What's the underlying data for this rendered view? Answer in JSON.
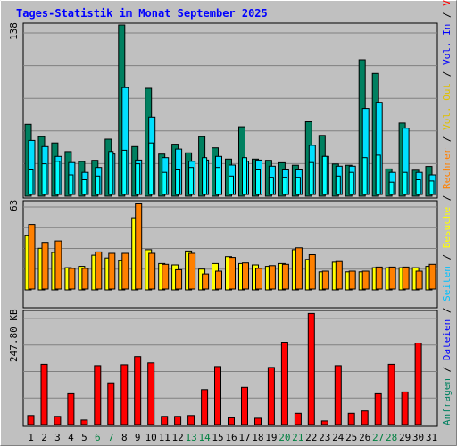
{
  "title": "Tages-Statistik im Monat September 2025",
  "colors": {
    "background": "#c0c0c0",
    "panel": "#c0c0c0",
    "title": "#0000ff",
    "anfragen": "#008060",
    "dateien": "#00e0ff",
    "seiten": "#00ffff",
    "besuche": "#ffff00",
    "rechner": "#ff8000",
    "vol_in": "#0000ff",
    "vol_out": "#ffff00",
    "volumen": "#ff0000",
    "weekend_label": "#008040",
    "label": "#000000"
  },
  "chart_data": [
    {
      "type": "bar",
      "name": "requests",
      "y_max_label": "138",
      "ylim": [
        0,
        138
      ],
      "legend": [
        {
          "name": "Anfragen",
          "color": "#008060"
        },
        {
          "name": "Dateien",
          "color": "#00e0ff"
        },
        {
          "name": "Seiten",
          "color": "#00ffff"
        }
      ],
      "series": [
        {
          "name": "Anfragen",
          "values": [
            58,
            48,
            43,
            36,
            28,
            29,
            46,
            138,
            40,
            87,
            34,
            42,
            35,
            48,
            39,
            30,
            56,
            30,
            29,
            27,
            25,
            60,
            49,
            26,
            25,
            110,
            99,
            22,
            59,
            21,
            24
          ]
        },
        {
          "name": "Dateien",
          "values": [
            44,
            39,
            31,
            26,
            18,
            22,
            33,
            87,
            28,
            63,
            30,
            37,
            27,
            28,
            31,
            24,
            27,
            28,
            23,
            20,
            20,
            40,
            31,
            23,
            23,
            70,
            75,
            18,
            54,
            18,
            16
          ]
        },
        {
          "name": "Seiten",
          "values": [
            20,
            25,
            27,
            16,
            12,
            15,
            35,
            36,
            25,
            42,
            18,
            20,
            22,
            30,
            22,
            15,
            30,
            20,
            14,
            14,
            14,
            26,
            31,
            15,
            18,
            30,
            32,
            10,
            18,
            12,
            11
          ]
        }
      ]
    },
    {
      "type": "bar",
      "name": "visits",
      "y_max_label": "63",
      "ylim": [
        0,
        63
      ],
      "legend": [
        {
          "name": "Besuche",
          "color": "#ffff00"
        },
        {
          "name": "Rechner",
          "color": "#ff8000"
        }
      ],
      "series": [
        {
          "name": "Besuche",
          "values": [
            39,
            30,
            27,
            16,
            17,
            25,
            23,
            21,
            52,
            29,
            19,
            18,
            28,
            15,
            19,
            24,
            19,
            18,
            17,
            19,
            29,
            22,
            13,
            20,
            13,
            13,
            16,
            16,
            16,
            16,
            17
          ]
        },
        {
          "name": "Rechner",
          "values": [
            47,
            34,
            35,
            15,
            15,
            27,
            26,
            26,
            62,
            26,
            18,
            14,
            26,
            11,
            13,
            23,
            19,
            15,
            17,
            18,
            30,
            25,
            13,
            20,
            13,
            13,
            16,
            16,
            16,
            13,
            18
          ]
        }
      ]
    },
    {
      "type": "bar",
      "name": "volume",
      "y_max_label": "247.80 KB",
      "ylim": [
        0,
        247.8
      ],
      "legend": [
        {
          "name": "Volumen",
          "color": "#ff0000"
        },
        {
          "name": "Vol. In",
          "color": "#0000ff"
        },
        {
          "name": "Vol. Out",
          "color": "#ffff00"
        }
      ],
      "series": [
        {
          "name": "Volumen",
          "values": [
            20,
            133,
            18,
            68,
            10,
            130,
            92,
            132,
            150,
            136,
            18,
            18,
            20,
            77,
            128,
            15,
            82,
            14,
            126,
            182,
            25,
            245,
            8,
            130,
            25,
            30,
            68,
            133,
            72,
            180,
            0
          ]
        }
      ]
    }
  ],
  "x_labels": [
    "1",
    "2",
    "3",
    "4",
    "5",
    "6",
    "7",
    "8",
    "9",
    "10",
    "11",
    "12",
    "13",
    "14",
    "15",
    "16",
    "17",
    "18",
    "19",
    "20",
    "21",
    "22",
    "23",
    "24",
    "25",
    "26",
    "27",
    "28",
    "29",
    "30",
    "31"
  ],
  "weekend_days": [
    6,
    7,
    13,
    14,
    20,
    21,
    27,
    28
  ],
  "right_labels": [
    {
      "text": "Anfragen",
      "color": "#008060"
    },
    {
      "text": " / ",
      "color": "#000000"
    },
    {
      "text": "Dateien",
      "color": "#0000ff"
    },
    {
      "text": " / ",
      "color": "#000000"
    },
    {
      "text": "Seiten",
      "color": "#00c0ff"
    },
    {
      "text": " / ",
      "color": "#000000"
    },
    {
      "text": "Besuche",
      "color": "#ffff00"
    },
    {
      "text": " / ",
      "color": "#000000"
    },
    {
      "text": "Rechner",
      "color": "#ff8000"
    },
    {
      "text": " / ",
      "color": "#000000"
    },
    {
      "text": "Vol. Out",
      "color": "#e0c000"
    },
    {
      "text": " / ",
      "color": "#000000"
    },
    {
      "text": "Vol. In",
      "color": "#0000ff"
    },
    {
      "text": " / ",
      "color": "#000000"
    },
    {
      "text": "Volumen",
      "color": "#ff0000"
    }
  ]
}
